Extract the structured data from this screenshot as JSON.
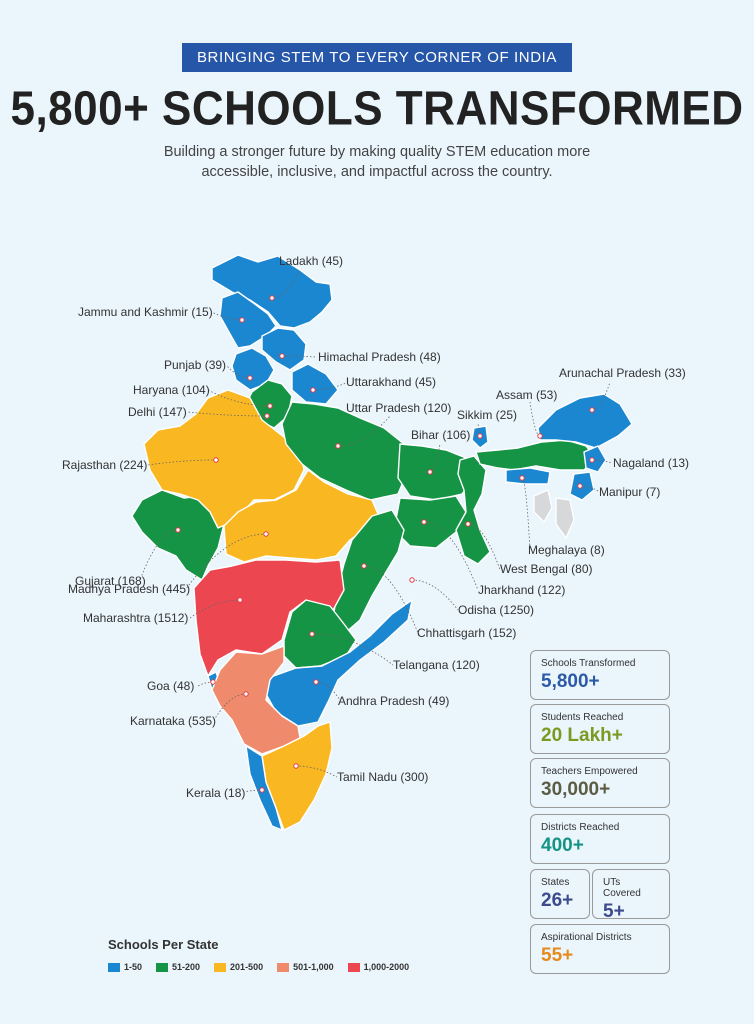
{
  "header": {
    "banner": "BRINGING STEM TO EVERY CORNER OF INDIA",
    "headline": "5,800+ SCHOOLS TRANSFORMED",
    "subtitle": "Building a stronger future by making quality STEM education more accessible, inclusive, and impactful across the country."
  },
  "colors": {
    "blue": "#1b87d0",
    "green": "#159445",
    "yellow": "#f9b722",
    "salmon": "#ef8a6d",
    "red": "#ec4650",
    "grey": "#d6d8da",
    "banner": "#2556a8"
  },
  "states": [
    {
      "name": "Ladakh",
      "value": "45"
    },
    {
      "name": "Jammu and Kashmir",
      "value": "15"
    },
    {
      "name": "Himachal Pradesh",
      "value": "48"
    },
    {
      "name": "Punjab",
      "value": "39"
    },
    {
      "name": "Haryana",
      "value": "104"
    },
    {
      "name": "Uttarakhand",
      "value": "45"
    },
    {
      "name": "Delhi",
      "value": "147"
    },
    {
      "name": "Uttar Pradesh",
      "value": "120"
    },
    {
      "name": "Rajasthan",
      "value": "224"
    },
    {
      "name": "Bihar",
      "value": "106"
    },
    {
      "name": "Sikkim",
      "value": "25"
    },
    {
      "name": "Assam",
      "value": "53"
    },
    {
      "name": "Arunachal Pradesh",
      "value": "33"
    },
    {
      "name": "Nagaland",
      "value": "13"
    },
    {
      "name": "Manipur",
      "value": "7"
    },
    {
      "name": "Meghalaya",
      "value": "8"
    },
    {
      "name": "West Bengal",
      "value": "80"
    },
    {
      "name": "Jharkhand",
      "value": "122"
    },
    {
      "name": "Gujarat",
      "value": "168"
    },
    {
      "name": "Madhya Pradesh",
      "value": "445"
    },
    {
      "name": "Odisha",
      "value": "1250"
    },
    {
      "name": "Maharashtra",
      "value": "1512"
    },
    {
      "name": "Chhattisgarh",
      "value": "152"
    },
    {
      "name": "Telangana",
      "value": "120"
    },
    {
      "name": "Goa",
      "value": "48"
    },
    {
      "name": "Andhra Pradesh",
      "value": "49"
    },
    {
      "name": "Karnataka",
      "value": "535"
    },
    {
      "name": "Tamil Nadu",
      "value": "300"
    },
    {
      "name": "Kerala",
      "value": "18"
    }
  ],
  "stats": [
    {
      "title": "Schools Transformed",
      "value": "5,800+",
      "color": "#2d5aa7"
    },
    {
      "title": "Students Reached",
      "value": "20 Lakh+",
      "color": "#7a9a22"
    },
    {
      "title": "Teachers Empowered",
      "value": "30,000+",
      "color": "#5c5c45"
    },
    {
      "title": "Districts Reached",
      "value": "400+",
      "color": "#159485"
    },
    {
      "title": "States",
      "value": "26+",
      "color": "#3d4a8c"
    },
    {
      "title": "UTs Covered",
      "value": "5+",
      "color": "#3d4a8c"
    },
    {
      "title": "Aspirational Districts",
      "value": "55+",
      "color": "#e78a1d"
    }
  ],
  "legend": {
    "title": "Schools Per State",
    "items": [
      {
        "label": "1-50",
        "color": "#1b87d0"
      },
      {
        "label": "51-200",
        "color": "#159445"
      },
      {
        "label": "201-500",
        "color": "#f9b722"
      },
      {
        "label": "501-1,000",
        "color": "#ef8a6d"
      },
      {
        "label": "1,000-2000",
        "color": "#ec4650"
      }
    ]
  }
}
